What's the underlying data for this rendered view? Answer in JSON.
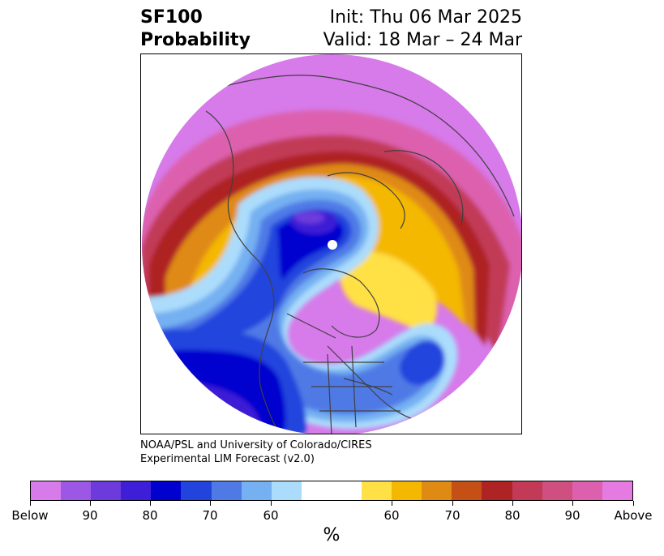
{
  "header": {
    "title_line1": "SF100",
    "title_line2": "Probability",
    "init": "Init: Thu 06 Mar 2025",
    "valid": "Valid: 18 Mar – 24 Mar"
  },
  "credit": {
    "line1": "NOAA/PSL and University of Colorado/CIRES",
    "line2": "Experimental LIM Forecast (v2.0)"
  },
  "colorbar": {
    "unit": "%",
    "colors": [
      "#d77aea",
      "#9c58e4",
      "#6d3adc",
      "#3e1ed6",
      "#0000cf",
      "#2244dd",
      "#4f7ae6",
      "#74b0f2",
      "#acdcfb",
      "#ffffff",
      "#ffe045",
      "#f4b800",
      "#df8a12",
      "#c45016",
      "#ae2323",
      "#c23a56",
      "#ce4f80",
      "#dc60ad",
      "#e57ae0"
    ],
    "tick_labels": [
      "Below",
      "90",
      "80",
      "70",
      "60",
      "60",
      "70",
      "80",
      "90",
      "Above"
    ]
  }
}
